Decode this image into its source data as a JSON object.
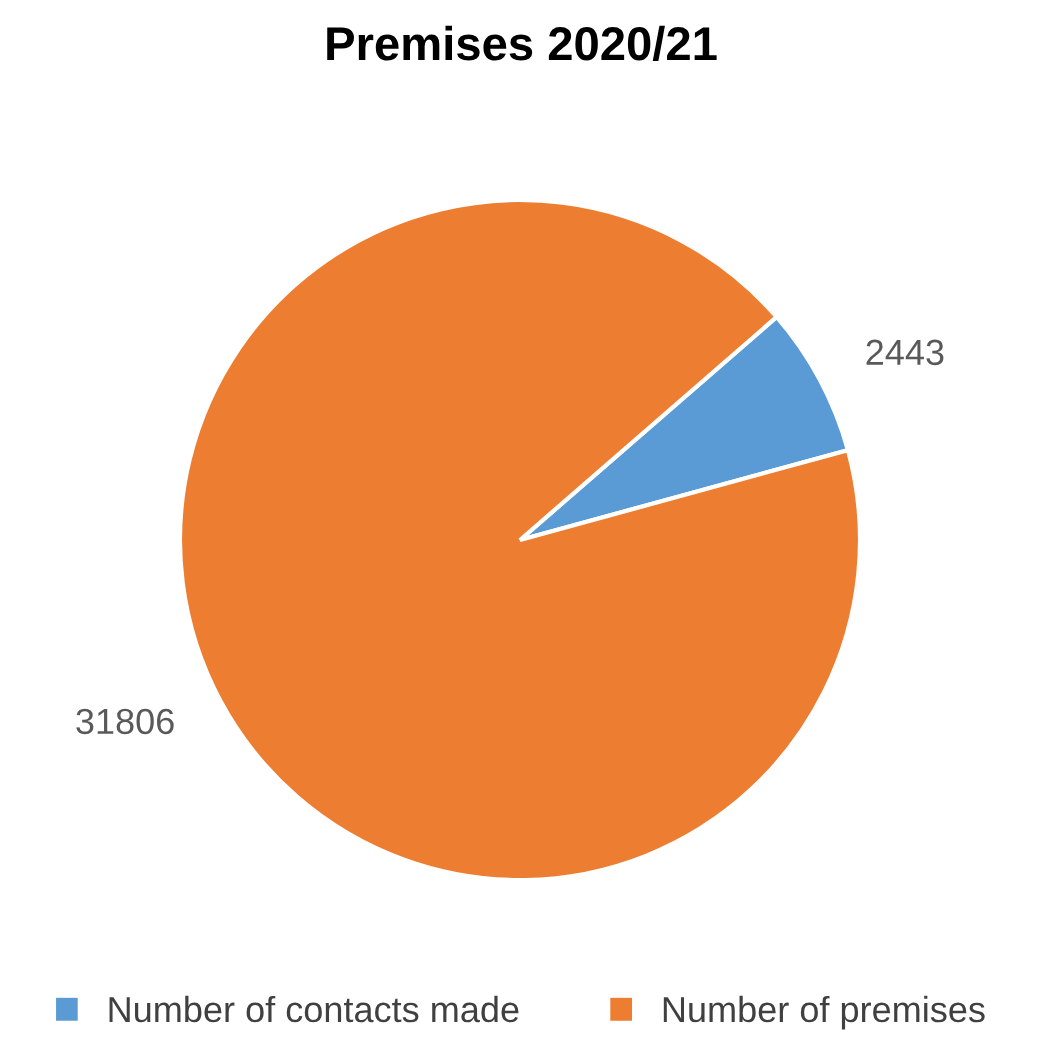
{
  "chart_data": {
    "type": "pie",
    "title": "Premises 2020/21",
    "categories": [
      "Number of contacts made",
      "Number of premises"
    ],
    "values": [
      2443,
      31806
    ],
    "colors": [
      "#5b9bd5",
      "#ed7d31"
    ],
    "data_labels": true,
    "legend": "bottom"
  }
}
